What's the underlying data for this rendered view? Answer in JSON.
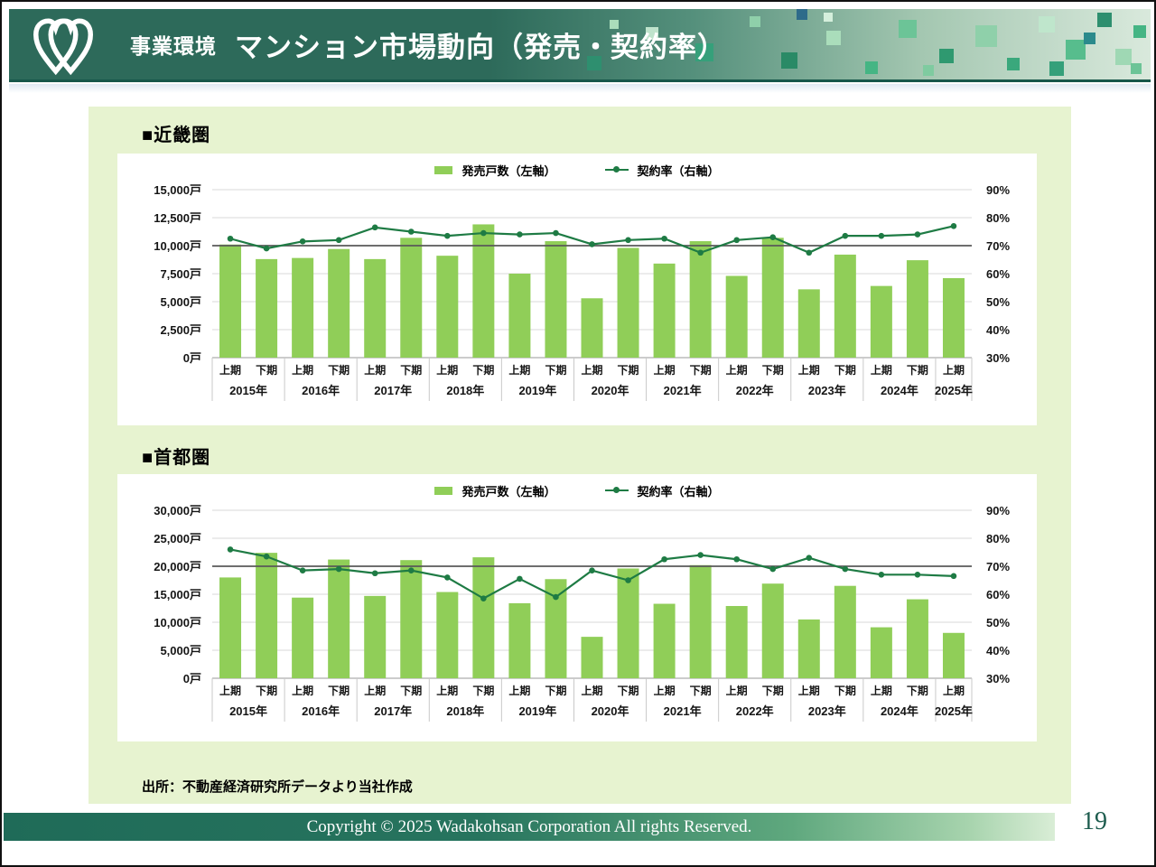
{
  "header": {
    "category_label": "事業環境",
    "title": "マンション市場動向（発売・契約率）"
  },
  "sections": {
    "kinki": "■近畿圏",
    "shutoken": "■首都圏"
  },
  "legend": {
    "bars": "発売戸数（左軸）",
    "line": "契約率（右軸）"
  },
  "source_note": "出所：不動産経済研究所データより当社作成",
  "footer": {
    "copyright": "Copyright © 2025  Wadakohsan Corporation All rights Reserved.",
    "page_number": "19"
  },
  "colors": {
    "bar": "#90CE58",
    "line": "#1E7B44",
    "reference_line": "#595959",
    "gridline": "#D9D9D9",
    "header_green": "#2D6A5A",
    "panel_green": "#E7F3D0",
    "footer_gradient_start": "#1F6B58",
    "footer_gradient_end": "#D9EDD6",
    "page_number": "#1D5C4E"
  },
  "chart_data": [
    {
      "type": "bar+line",
      "region": "近畿圏",
      "legend_position": "top-center",
      "grid": true,
      "x_year_groups": [
        {
          "year": "2015年",
          "periods": [
            "上期",
            "下期"
          ]
        },
        {
          "year": "2016年",
          "periods": [
            "上期",
            "下期"
          ]
        },
        {
          "year": "2017年",
          "periods": [
            "上期",
            "下期"
          ]
        },
        {
          "year": "2018年",
          "periods": [
            "上期",
            "下期"
          ]
        },
        {
          "year": "2019年",
          "periods": [
            "上期",
            "下期"
          ]
        },
        {
          "year": "2020年",
          "periods": [
            "上期",
            "下期"
          ]
        },
        {
          "year": "2021年",
          "periods": [
            "上期",
            "下期"
          ]
        },
        {
          "year": "2022年",
          "periods": [
            "上期",
            "下期"
          ]
        },
        {
          "year": "2023年",
          "periods": [
            "上期",
            "下期"
          ]
        },
        {
          "year": "2024年",
          "periods": [
            "上期",
            "下期"
          ]
        },
        {
          "year": "2025年",
          "periods": [
            "上期"
          ]
        }
      ],
      "bar_series": {
        "name": "発売戸数（左軸）",
        "axis": "left",
        "unit": "戸",
        "values": [
          10100,
          8800,
          8900,
          9700,
          8800,
          10700,
          9100,
          11900,
          7500,
          10400,
          5300,
          9800,
          8400,
          10400,
          7300,
          10700,
          6100,
          9200,
          6400,
          8700,
          7100
        ]
      },
      "line_series": {
        "name": "契約率（右軸）",
        "axis": "right",
        "unit": "%",
        "values": [
          72.5,
          69.0,
          71.5,
          72.0,
          76.5,
          75.0,
          73.5,
          74.5,
          74.0,
          74.5,
          70.5,
          72.0,
          72.5,
          67.5,
          72.0,
          73.0,
          67.5,
          73.5,
          73.5,
          74.0,
          77.0
        ]
      },
      "left_axis": {
        "min": 0,
        "max": 15000,
        "tick_labels": [
          "0戸",
          "2,500戸",
          "5,000戸",
          "7,500戸",
          "10,000戸",
          "12,500戸",
          "15,000戸"
        ]
      },
      "right_axis": {
        "min": 30,
        "max": 90,
        "tick_labels": [
          "30%",
          "40%",
          "50%",
          "60%",
          "70%",
          "80%",
          "90%"
        ]
      },
      "reference_line": {
        "axis": "right",
        "value": 70
      }
    },
    {
      "type": "bar+line",
      "region": "首都圏",
      "legend_position": "top-center",
      "grid": true,
      "x_year_groups": [
        {
          "year": "2015年",
          "periods": [
            "上期",
            "下期"
          ]
        },
        {
          "year": "2016年",
          "periods": [
            "上期",
            "下期"
          ]
        },
        {
          "year": "2017年",
          "periods": [
            "上期",
            "下期"
          ]
        },
        {
          "year": "2018年",
          "periods": [
            "上期",
            "下期"
          ]
        },
        {
          "year": "2019年",
          "periods": [
            "上期",
            "下期"
          ]
        },
        {
          "year": "2020年",
          "periods": [
            "上期",
            "下期"
          ]
        },
        {
          "year": "2021年",
          "periods": [
            "上期",
            "下期"
          ]
        },
        {
          "year": "2022年",
          "periods": [
            "上期",
            "下期"
          ]
        },
        {
          "year": "2023年",
          "periods": [
            "上期",
            "下期"
          ]
        },
        {
          "year": "2024年",
          "periods": [
            "上期",
            "下期"
          ]
        },
        {
          "year": "2025年",
          "periods": [
            "上期"
          ]
        }
      ],
      "bar_series": {
        "name": "発売戸数（左軸）",
        "axis": "left",
        "unit": "戸",
        "values": [
          18000,
          22400,
          14400,
          21200,
          14700,
          21100,
          15400,
          21600,
          13400,
          17700,
          7400,
          19600,
          13300,
          20200,
          12900,
          16900,
          10500,
          16500,
          9100,
          14100,
          8100
        ]
      },
      "line_series": {
        "name": "契約率（右軸）",
        "axis": "right",
        "unit": "%",
        "values": [
          76.0,
          73.5,
          68.5,
          69.0,
          67.5,
          68.5,
          66.0,
          58.5,
          65.5,
          59.0,
          68.5,
          65.0,
          72.5,
          74.0,
          72.5,
          69.0,
          73.0,
          69.0,
          67.0,
          67.0,
          66.5
        ]
      },
      "left_axis": {
        "min": 0,
        "max": 30000,
        "tick_labels": [
          "0戸",
          "5,000戸",
          "10,000戸",
          "15,000戸",
          "20,000戸",
          "25,000戸",
          "30,000戸"
        ]
      },
      "right_axis": {
        "min": 30,
        "max": 90,
        "tick_labels": [
          "30%",
          "40%",
          "50%",
          "60%",
          "70%",
          "80%",
          "90%"
        ]
      },
      "reference_line": {
        "axis": "right",
        "value": 70
      }
    }
  ]
}
